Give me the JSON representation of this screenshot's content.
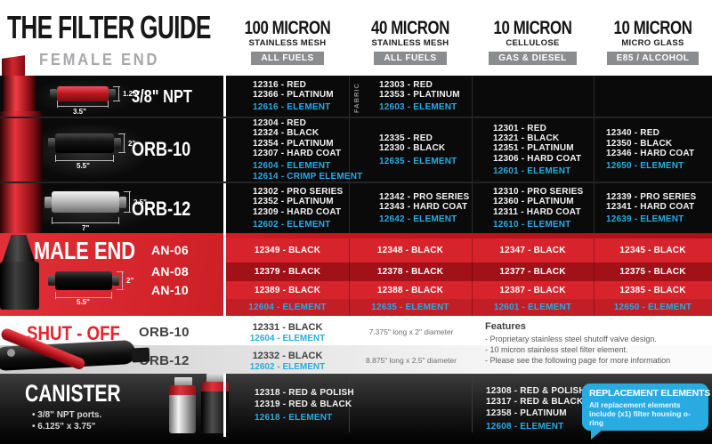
{
  "header": {
    "title": "THE FILTER GUIDE",
    "subtitle": "FEMALE END",
    "columns": [
      {
        "micron": "100 MICRON",
        "media": "STAINLESS MESH",
        "badge": "ALL FUELS"
      },
      {
        "micron": "40 MICRON",
        "media": "STAINLESS MESH",
        "badge": "ALL FUELS"
      },
      {
        "micron": "10 MICRON",
        "media": "CELLULOSE",
        "badge": "GAS & DIESEL"
      },
      {
        "micron": "10 MICRON",
        "media": "MICRO GLASS",
        "badge": "E85 / ALCOHOL"
      }
    ]
  },
  "female_rows": [
    {
      "label": "3/8\" NPT",
      "dim_height": "1.25\"",
      "dim_width": "3.5\"",
      "cells": [
        {
          "parts": [
            "12316 - RED",
            "12366 - PLATINUM"
          ],
          "elements": [
            "12616 - ELEMENT"
          ]
        },
        {
          "note": "FABRIC",
          "parts": [
            "12303 - RED",
            "12353 - PLATINUM"
          ],
          "elements": [
            "12603 - ELEMENT"
          ]
        },
        {
          "parts": [],
          "elements": []
        },
        {
          "parts": [],
          "elements": []
        }
      ]
    },
    {
      "label": "ORB-10",
      "dim_height": "2\"",
      "dim_width": "5.5\"",
      "cells": [
        {
          "parts": [
            "12304 - RED",
            "12324 - BLACK",
            "12354 - PLATINUM",
            "12307 - HARD COAT"
          ],
          "elements": [
            "12604 - ELEMENT",
            "12614 - CRIMP ELEMENT"
          ]
        },
        {
          "parts": [
            "12335 - RED",
            "12330 - BLACK"
          ],
          "elements": [
            "12635 - ELEMENT"
          ]
        },
        {
          "parts": [
            "12301 - RED",
            "12321 - BLACK",
            "12351 - PLATINUM",
            "12306 - HARD COAT"
          ],
          "elements": [
            "12601 - ELEMENT"
          ]
        },
        {
          "parts": [
            "12340 - RED",
            "12350 - BLACK",
            "12346 - HARD COAT"
          ],
          "elements": [
            "12650 - ELEMENT"
          ]
        }
      ]
    },
    {
      "label": "ORB-12",
      "dim_height": "2.5\"",
      "dim_width": "7\"",
      "cells": [
        {
          "parts": [
            "12302 - PRO SERIES",
            "12352 - PLATINUM",
            "12309 - HARD COAT"
          ],
          "elements": [
            "12602 - ELEMENT"
          ]
        },
        {
          "parts": [
            "12342 - PRO SERIES",
            "12343 - HARD COAT"
          ],
          "elements": [
            "12642 - ELEMENT"
          ]
        },
        {
          "parts": [
            "12310 - PRO SERIES",
            "12360 - PLATINUM",
            "12311 - HARD COAT"
          ],
          "elements": [
            "12610 - ELEMENT"
          ]
        },
        {
          "parts": [
            "12339 - PRO SERIES",
            "12341 - HARD COAT"
          ],
          "elements": [
            "12639 - ELEMENT"
          ]
        }
      ]
    }
  ],
  "male_end": {
    "title": "MALE END",
    "dim_height": "2\"",
    "dim_width": "5.5\"",
    "rows": [
      {
        "label": "AN-06",
        "cells": [
          "12349 - BLACK",
          "12348 - BLACK",
          "12347 - BLACK",
          "12345 - BLACK"
        ]
      },
      {
        "label": "AN-08",
        "cells": [
          "12379 - BLACK",
          "12378 - BLACK",
          "12377 - BLACK",
          "12375 - BLACK"
        ]
      },
      {
        "label": "AN-10",
        "cells": [
          "12389 - BLACK",
          "12388 - BLACK",
          "12387 - BLACK",
          "12385 - BLACK"
        ]
      }
    ],
    "element_row": [
      "12604 - ELEMENT",
      "12635 - ELEMENT",
      "12601 - ELEMENT",
      "12650 - ELEMENT"
    ]
  },
  "shut_off": {
    "title": "SHUT - OFF",
    "rows": [
      {
        "port": "ORB-10",
        "part": "12331 - BLACK",
        "element": "12604 - ELEMENT",
        "size": "7.375\" long x 2\" diameter"
      },
      {
        "port": "ORB-12",
        "part": "12332 - BLACK",
        "element": "12602 - ELEMENT",
        "size": "8.875\" long x 2.5\" diameter"
      }
    ],
    "features_title": "Features",
    "features": [
      "- Proprietary stainless steel shutoff valve design.",
      "- 10 micron stainless steel filter element.",
      "- Please see the following page for more information"
    ]
  },
  "canister": {
    "title": "CANISTER",
    "bullets": [
      "• 3/8\" NPT ports.",
      "• 6.125\" x 3.75\""
    ],
    "col1": {
      "parts": [
        "12318 - RED & POLISH",
        "12319 - RED & BLACK"
      ],
      "elements": [
        "12618 - ELEMENT"
      ]
    },
    "col3": {
      "parts": [
        "12308 - RED & POLISH",
        "12317 - RED & BLACK",
        "12358 - PLATINUM"
      ],
      "elements": [
        "12608 - ELEMENT"
      ]
    },
    "replacement_box": {
      "title": "REPLACEMENT ELEMENTS",
      "text": "All replacement elements include (x1) filter housing o-ring"
    }
  },
  "colors": {
    "accent_blue": "#29abe2",
    "brand_red": "#d6232c",
    "badge_gray": "#8a8c8e"
  }
}
